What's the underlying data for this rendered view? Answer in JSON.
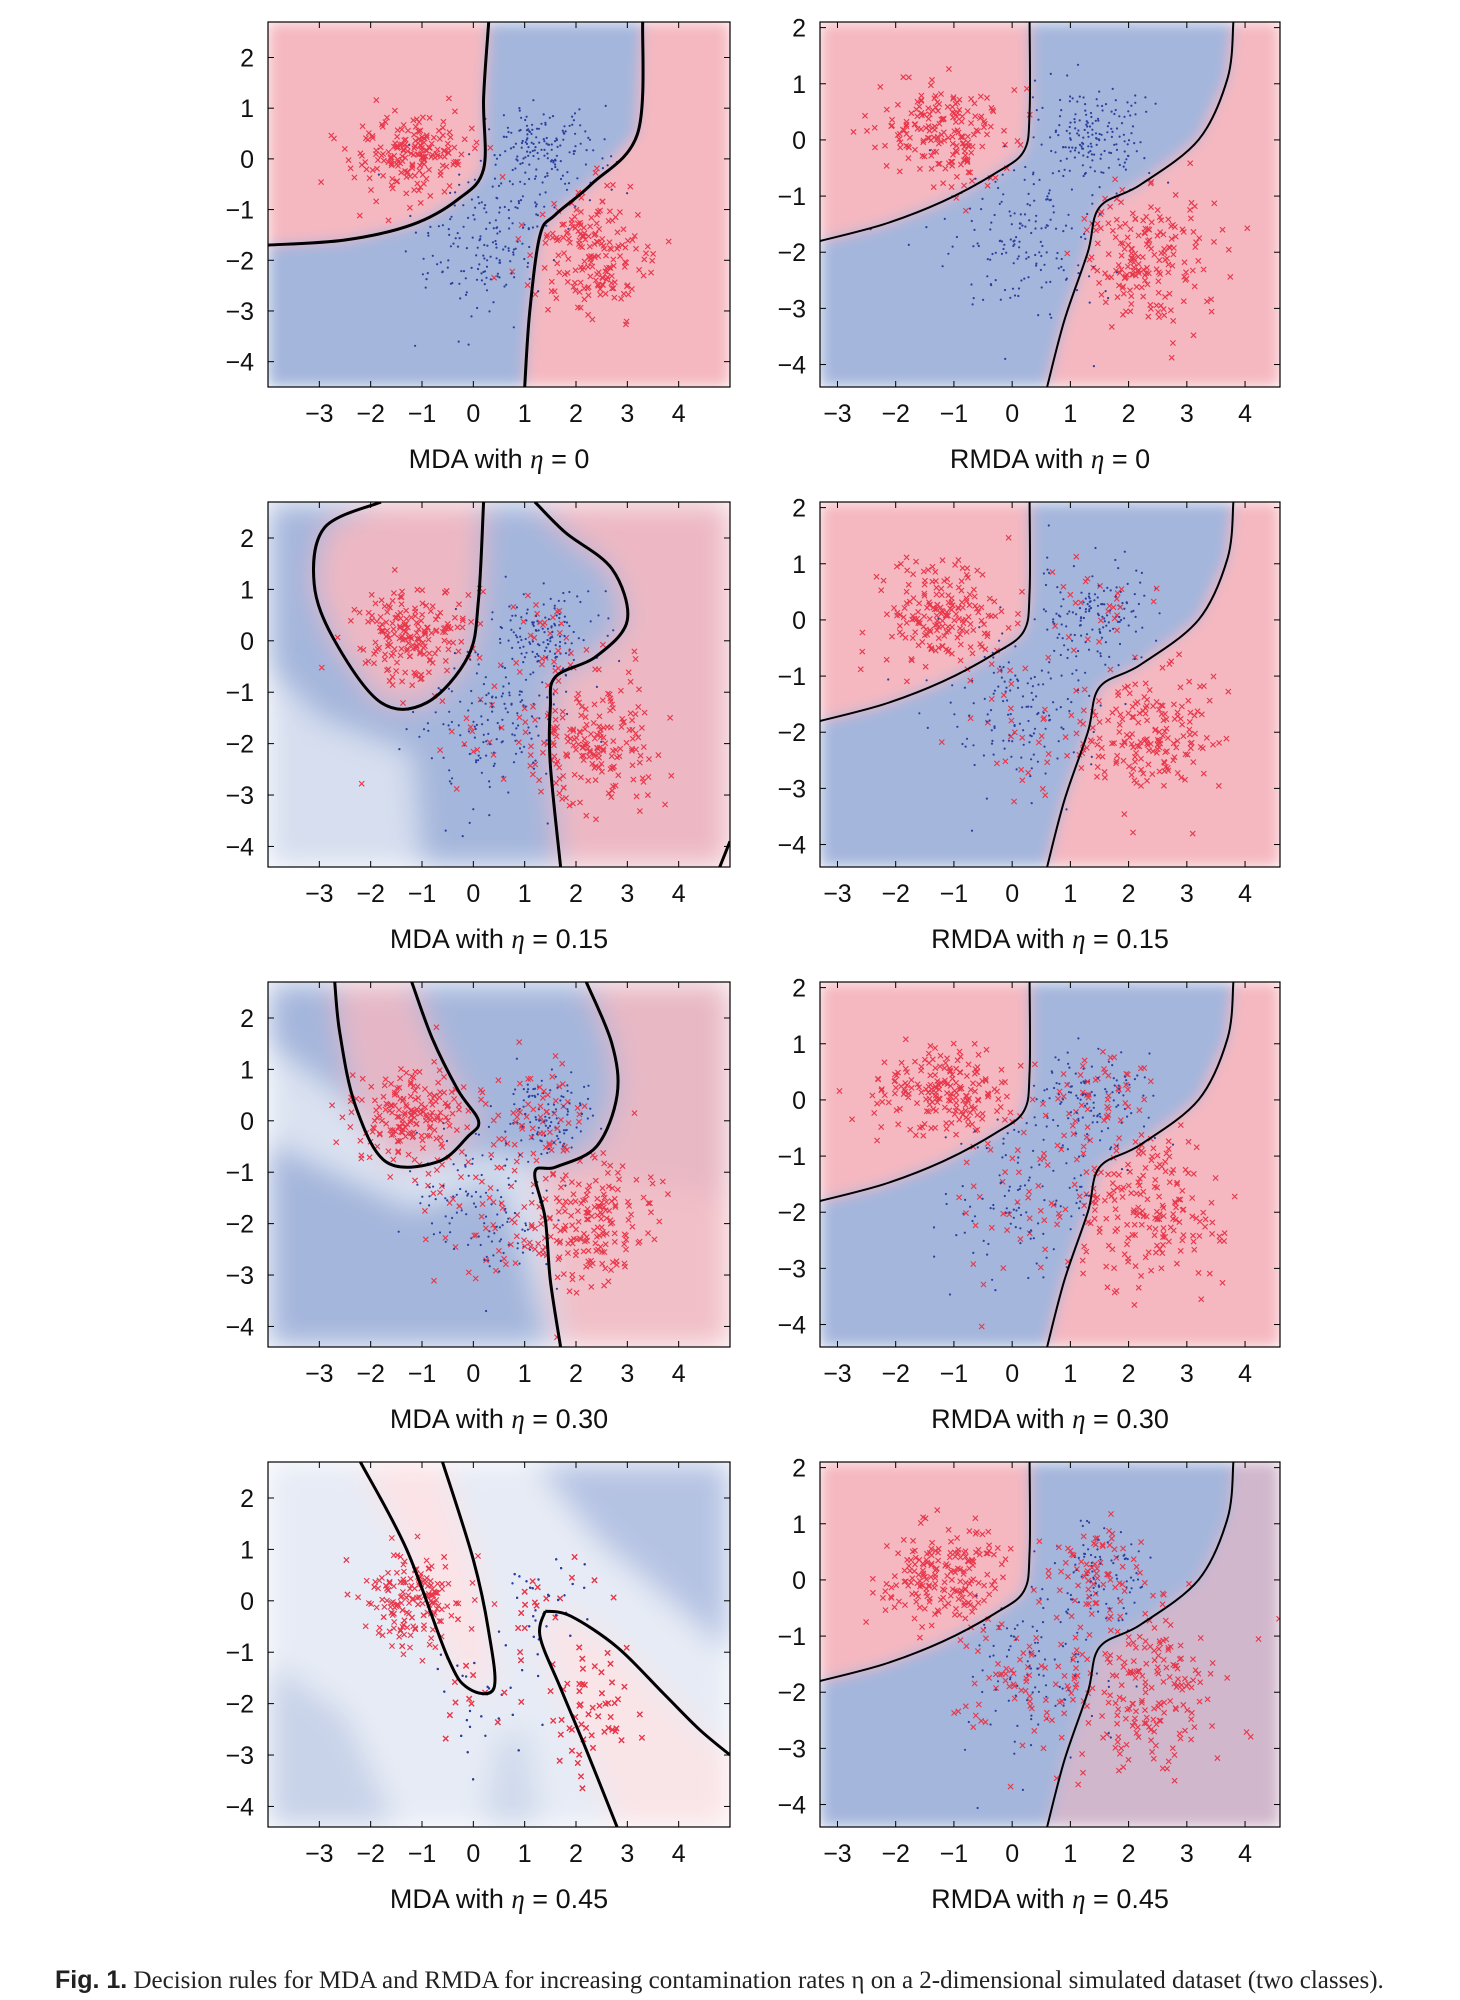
{
  "chart_data": [
    {
      "type": "scatter",
      "method": "MDA",
      "eta": "0",
      "title_prefix": "MDA with ",
      "title_eta_symbol": "η",
      "title_suffix": " = 0",
      "xticks": [
        "−3",
        "−2",
        "−1",
        "0",
        "1",
        "2",
        "3",
        "4"
      ],
      "yticks": [
        "2",
        "1",
        "0",
        "−1",
        "−2",
        "−3",
        "−4"
      ],
      "xlim": [
        -4,
        5
      ],
      "ylim": [
        -4.5,
        2.7
      ],
      "series": [
        {
          "marker": "x",
          "color": "#e8364a"
        },
        {
          "marker": "dot",
          "color": "#2b3f9e"
        }
      ],
      "background_classes": [
        "red",
        "blue"
      ]
    },
    {
      "type": "scatter",
      "method": "RMDA",
      "eta": "0",
      "title_prefix": "RMDA with ",
      "title_eta_symbol": "η",
      "title_suffix": " = 0",
      "xticks": [
        "−3",
        "−2",
        "−1",
        "0",
        "1",
        "2",
        "3",
        "4"
      ],
      "yticks": [
        "2",
        "1",
        "0",
        "−1",
        "−2",
        "−3",
        "−4"
      ],
      "xlim": [
        -3.3,
        4.6
      ],
      "ylim": [
        -4.4,
        2.1
      ],
      "series": [
        {
          "marker": "x",
          "color": "#e8364a"
        },
        {
          "marker": "dot",
          "color": "#2b3f9e"
        }
      ]
    },
    {
      "type": "scatter",
      "method": "MDA",
      "eta": "0.15",
      "title_prefix": "MDA with ",
      "title_eta_symbol": "η",
      "title_suffix": " = 0.15",
      "xticks": [
        "−3",
        "−2",
        "−1",
        "0",
        "1",
        "2",
        "3",
        "4"
      ],
      "yticks": [
        "2",
        "1",
        "0",
        "−1",
        "−2",
        "−3",
        "−4"
      ],
      "xlim": [
        -4,
        5
      ],
      "ylim": [
        -4.4,
        2.7
      ]
    },
    {
      "type": "scatter",
      "method": "RMDA",
      "eta": "0.15",
      "title_prefix": "RMDA with ",
      "title_eta_symbol": "η",
      "title_suffix": " = 0.15",
      "xticks": [
        "−3",
        "−2",
        "−1",
        "0",
        "1",
        "2",
        "3",
        "4"
      ],
      "yticks": [
        "2",
        "1",
        "0",
        "−1",
        "−2",
        "−3",
        "−4"
      ],
      "xlim": [
        -3.3,
        4.6
      ],
      "ylim": [
        -4.4,
        2.1
      ]
    },
    {
      "type": "scatter",
      "method": "MDA",
      "eta": "0.30",
      "title_prefix": "MDA with ",
      "title_eta_symbol": "η",
      "title_suffix": " = 0.30",
      "xticks": [
        "−3",
        "−2",
        "−1",
        "0",
        "1",
        "2",
        "3",
        "4"
      ],
      "yticks": [
        "2",
        "1",
        "0",
        "−1",
        "−2",
        "−3",
        "−4"
      ],
      "xlim": [
        -4,
        5
      ],
      "ylim": [
        -4.4,
        2.7
      ]
    },
    {
      "type": "scatter",
      "method": "RMDA",
      "eta": "0.30",
      "title_prefix": "RMDA with ",
      "title_eta_symbol": "η",
      "title_suffix": " = 0.30",
      "xticks": [
        "−3",
        "−2",
        "−1",
        "0",
        "1",
        "2",
        "3",
        "4"
      ],
      "yticks": [
        "2",
        "1",
        "0",
        "−1",
        "−2",
        "−3",
        "−4"
      ],
      "xlim": [
        -3.3,
        4.6
      ],
      "ylim": [
        -4.4,
        2.1
      ]
    },
    {
      "type": "scatter",
      "method": "MDA",
      "eta": "0.45",
      "title_prefix": "MDA with ",
      "title_eta_symbol": "η",
      "title_suffix": " = 0.45",
      "xticks": [
        "−3",
        "−2",
        "−1",
        "0",
        "1",
        "2",
        "3",
        "4"
      ],
      "yticks": [
        "2",
        "1",
        "0",
        "−1",
        "−2",
        "−3",
        "−4"
      ],
      "xlim": [
        -4,
        5
      ],
      "ylim": [
        -4.4,
        2.7
      ]
    },
    {
      "type": "scatter",
      "method": "RMDA",
      "eta": "0.45",
      "title_prefix": "RMDA with ",
      "title_eta_symbol": "η",
      "title_suffix": " = 0.45",
      "xticks": [
        "−3",
        "−2",
        "−1",
        "0",
        "1",
        "2",
        "3",
        "4"
      ],
      "yticks": [
        "2",
        "1",
        "0",
        "−1",
        "−2",
        "−3",
        "−4"
      ],
      "xlim": [
        -3.3,
        4.6
      ],
      "ylim": [
        -4.4,
        2.1
      ]
    }
  ],
  "clusters": [
    {
      "name": "red-upper-left",
      "center": [
        -1.2,
        0.1
      ],
      "spread": [
        0.55,
        0.45
      ],
      "marker": "x"
    },
    {
      "name": "red-lower-right",
      "center": [
        2.3,
        -2.0
      ],
      "spread": [
        0.6,
        0.65
      ],
      "marker": "x"
    },
    {
      "name": "blue-upper",
      "center": [
        1.4,
        0.1
      ],
      "spread": [
        0.5,
        0.45
      ],
      "marker": "dot"
    },
    {
      "name": "blue-lower",
      "center": [
        0.2,
        -1.7
      ],
      "spread": [
        0.7,
        0.7
      ],
      "marker": "dot"
    }
  ],
  "colors": {
    "red_region": "#f5b8c0",
    "blue_region": "#a4b6dc",
    "red_points": "#e8364a",
    "blue_points": "#2b3f9e",
    "boundary": "#000000"
  },
  "caption": {
    "label": "Fig. 1.",
    "text": " Decision rules for MDA and RMDA for increasing contamination rates η on a 2-dimensional simulated dataset (two classes)."
  }
}
